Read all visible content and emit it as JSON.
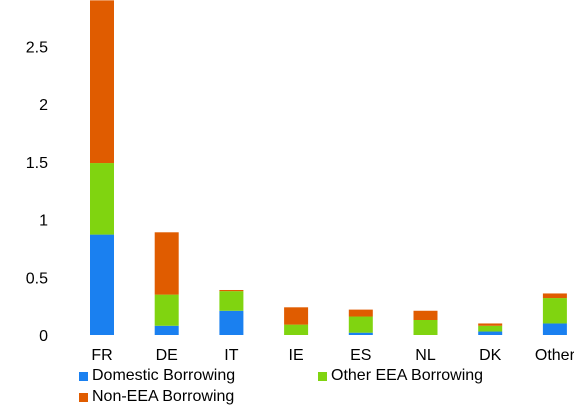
{
  "chart_data": {
    "type": "bar",
    "stacked": true,
    "categories": [
      "FR",
      "DE",
      "IT",
      "IE",
      "ES",
      "NL",
      "DK",
      "Other"
    ],
    "series": [
      {
        "name": "Domestic Borrowing",
        "color": "#1a80f0",
        "values": [
          0.87,
          0.08,
          0.21,
          0.0,
          0.02,
          0.0,
          0.03,
          0.1
        ]
      },
      {
        "name": "Other EEA Borrowing",
        "color": "#80d410",
        "values": [
          0.62,
          0.27,
          0.17,
          0.09,
          0.14,
          0.13,
          0.05,
          0.22
        ]
      },
      {
        "name": "Non-EEA Borrowing",
        "color": "#e05c00",
        "values": [
          1.41,
          0.54,
          0.01,
          0.15,
          0.06,
          0.08,
          0.02,
          0.04
        ]
      }
    ],
    "yticks": [
      "0",
      "0.5",
      "1",
      "1.5",
      "2",
      "2.5"
    ],
    "ylim": [
      0,
      2.9
    ],
    "grid": false,
    "legend": "bottom",
    "title": "",
    "xlabel": "",
    "ylabel": ""
  }
}
